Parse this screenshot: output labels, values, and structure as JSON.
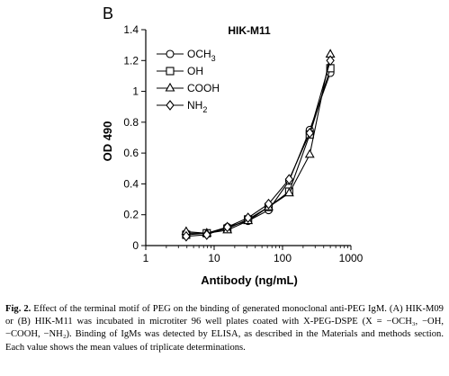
{
  "panel_label": "B",
  "chart_data": {
    "type": "line",
    "title": "HIK-M11",
    "xlabel": "Antibody (ng/mL)",
    "ylabel": "OD 490",
    "x_scale": "log",
    "xlim": [
      1,
      1000
    ],
    "ylim": [
      0,
      1.4
    ],
    "x_ticks": [
      1,
      10,
      100,
      1000
    ],
    "x_tick_labels": [
      "1",
      "10",
      "100",
      "1000"
    ],
    "y_ticks": [
      0,
      0.2,
      0.4,
      0.6,
      0.8,
      1,
      1.2,
      1.4
    ],
    "y_tick_labels": [
      "0",
      "0.2",
      "0.4",
      "0.6",
      "0.8",
      "1",
      "1.2",
      "1.4"
    ],
    "grid": false,
    "legend_position": "top-left",
    "x": [
      3.9,
      7.8,
      15.6,
      31.3,
      62.5,
      125,
      250,
      500
    ],
    "series": [
      {
        "name": "OCH3",
        "legend_main": "OCH",
        "legend_sub": "3",
        "marker": "circle",
        "values": [
          0.08,
          0.08,
          0.12,
          0.16,
          0.23,
          0.42,
          0.75,
          1.12
        ]
      },
      {
        "name": "OH",
        "legend_main": "OH",
        "legend_sub": "",
        "marker": "square",
        "values": [
          0.07,
          0.08,
          0.11,
          0.17,
          0.25,
          0.35,
          0.72,
          1.15
        ]
      },
      {
        "name": "COOH",
        "legend_main": "COOH",
        "legend_sub": "",
        "marker": "triangle",
        "values": [
          0.09,
          0.08,
          0.1,
          0.16,
          0.25,
          0.34,
          0.59,
          1.24
        ]
      },
      {
        "name": "NH2",
        "legend_main": "NH",
        "legend_sub": "2",
        "marker": "diamond",
        "values": [
          0.06,
          0.07,
          0.12,
          0.18,
          0.27,
          0.43,
          0.73,
          1.2
        ]
      }
    ]
  },
  "caption": {
    "label": "Fig. 2.",
    "text": " Effect of the terminal motif of PEG on the binding of generated monoclonal anti-PEG IgM. (A) HIK-M09 or (B) HIK-M11 was incubated in microtiter 96 well plates coated with X-PEG-DSPE (X = −OCH₃, −OH, −COOH, −NH₂). Binding of IgMs was detected by ELISA, as described in the Materials and methods section. Each value shows the mean values of triplicate determinations."
  }
}
